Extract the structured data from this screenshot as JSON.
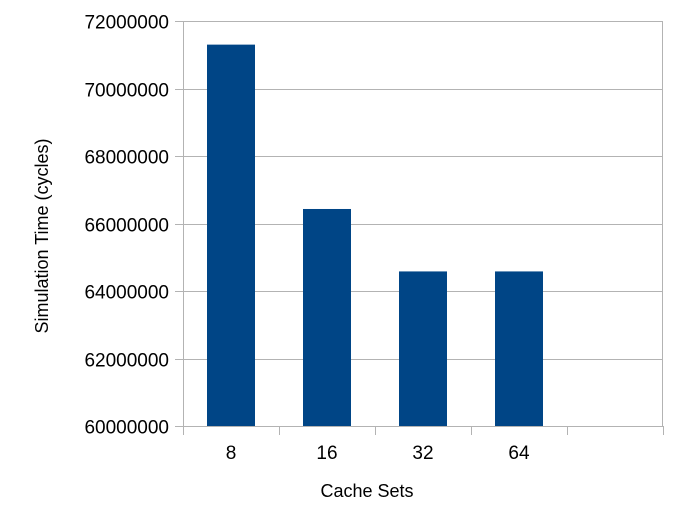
{
  "chart_data": {
    "type": "bar",
    "categories": [
      "8",
      "16",
      "32",
      "64",
      ""
    ],
    "values": [
      71300000,
      66430000,
      64580000,
      64580000,
      null
    ],
    "title": "",
    "xlabel": "Cache Sets",
    "ylabel": "Simulation Time (cycles)",
    "ylim": [
      60000000,
      72000000
    ],
    "yticks": [
      60000000,
      62000000,
      64000000,
      66000000,
      68000000,
      70000000,
      72000000
    ],
    "ytick_labels": [
      "60000000",
      "62000000",
      "64000000",
      "66000000",
      "68000000",
      "70000000",
      "72000000"
    ],
    "grid": true,
    "legend": "none",
    "bar_color": "#004586",
    "grid_color": "#b3b3b3"
  }
}
